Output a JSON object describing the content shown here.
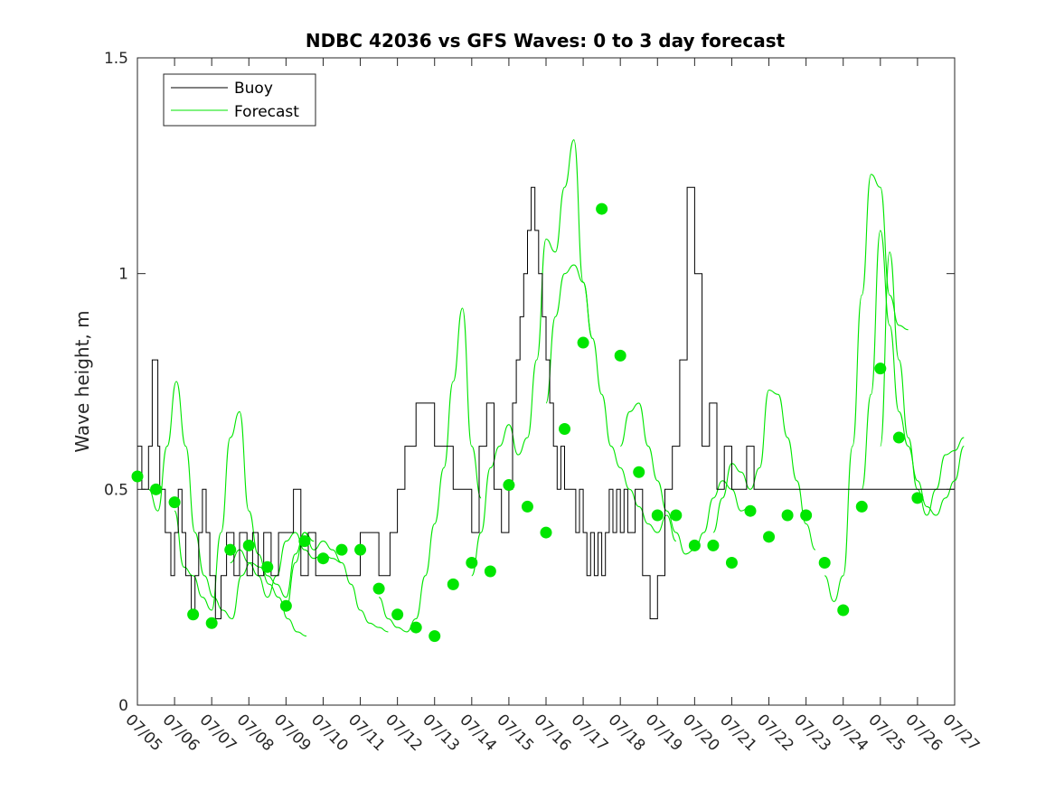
{
  "chart_data": {
    "type": "line",
    "title": "NDBC 42036 vs GFS Waves: 0 to 3 day forecast",
    "xlabel": "",
    "ylabel": "Wave height, m",
    "xlim": [
      "07/05",
      "07/27"
    ],
    "ylim": [
      0,
      1.5
    ],
    "x_tick_labels": [
      "07/05",
      "07/06",
      "07/07",
      "07/08",
      "07/09",
      "07/10",
      "07/11",
      "07/12",
      "07/13",
      "07/14",
      "07/15",
      "07/16",
      "07/17",
      "07/18",
      "07/19",
      "07/20",
      "07/21",
      "07/22",
      "07/23",
      "07/24",
      "07/25",
      "07/26",
      "07/27"
    ],
    "y_ticks": [
      0,
      0.5,
      1,
      1.5
    ],
    "y_tick_labels": [
      "0",
      "0.5",
      "1",
      "1.5"
    ],
    "grid": false,
    "legend": {
      "position": "top-left",
      "entries": [
        "Buoy",
        "Forecast"
      ]
    },
    "colors": {
      "buoy": "#000000",
      "forecast": "#00e600",
      "axes": "#262626"
    },
    "series": [
      {
        "name": "Buoy",
        "style": "step",
        "x": [
          0,
          0.12,
          0.3,
          0.4,
          0.55,
          0.6,
          0.75,
          0.9,
          1.0,
          1.1,
          1.2,
          1.3,
          1.45,
          1.55,
          1.65,
          1.75,
          1.85,
          1.95,
          2.1,
          2.25,
          2.4,
          2.5,
          2.6,
          2.75,
          2.95,
          3.1,
          3.25,
          3.4,
          3.6,
          3.8,
          4.0,
          4.2,
          4.4,
          4.6,
          4.8,
          5.2,
          5.6,
          5.8,
          5.85,
          5.9,
          6.0,
          6.5,
          6.8,
          7.0,
          7.2,
          7.5,
          8.0,
          8.5,
          9.0,
          9.2,
          9.4,
          9.6,
          9.8,
          10.0,
          10.1,
          10.2,
          10.3,
          10.4,
          10.5,
          10.6,
          10.7,
          10.8,
          10.9,
          11.0,
          11.1,
          11.2,
          11.3,
          11.4,
          11.5,
          11.6,
          11.7,
          11.8,
          11.9,
          12.0,
          12.1,
          12.2,
          12.3,
          12.4,
          12.5,
          12.6,
          12.7,
          12.8,
          12.9,
          13.0,
          13.1,
          13.2,
          13.4,
          13.6,
          13.8,
          14.0,
          14.2,
          14.4,
          14.6,
          14.8,
          15.0,
          15.2,
          15.4,
          15.6,
          15.8,
          16.0,
          16.2,
          16.4,
          16.6,
          16.8,
          17.0,
          17.2,
          17.4,
          17.6,
          17.8,
          18.0,
          18.2,
          18.4,
          18.6,
          18.8,
          19.0,
          19.2,
          19.4,
          19.6,
          19.8,
          20.0,
          20.2,
          20.4,
          20.6,
          20.8,
          21.0,
          21.2,
          21.4,
          21.6,
          21.8,
          22.0
        ],
        "values": [
          0.6,
          0.5,
          0.6,
          0.8,
          0.6,
          0.5,
          0.4,
          0.3,
          0.4,
          0.5,
          0.4,
          0.3,
          0.2,
          0.3,
          0.4,
          0.5,
          0.4,
          0.3,
          0.2,
          0.3,
          0.4,
          0.4,
          0.3,
          0.4,
          0.3,
          0.4,
          0.3,
          0.4,
          0.3,
          0.4,
          0.4,
          0.5,
          0.3,
          0.4,
          0.3,
          0.3,
          0.3,
          0.3,
          0.3,
          0.3,
          0.4,
          0.3,
          0.4,
          0.5,
          0.6,
          0.7,
          0.6,
          0.5,
          0.4,
          0.6,
          0.7,
          0.5,
          0.4,
          0.5,
          0.7,
          0.8,
          0.9,
          1.0,
          1.1,
          1.2,
          1.1,
          1.0,
          0.9,
          0.8,
          0.7,
          0.6,
          0.5,
          0.6,
          0.5,
          0.5,
          0.5,
          0.4,
          0.5,
          0.4,
          0.3,
          0.4,
          0.3,
          0.4,
          0.3,
          0.4,
          0.5,
          0.4,
          0.5,
          0.4,
          0.5,
          0.4,
          0.5,
          0.3,
          0.2,
          0.3,
          0.5,
          0.6,
          0.8,
          1.2,
          1.0,
          0.6,
          0.7,
          0.5,
          0.6,
          0.5,
          0.5,
          0.6,
          0.5,
          0.5,
          0.5,
          0.5,
          0.5,
          0.5,
          0.5,
          0.5,
          0.5,
          0.5,
          0.5,
          0.5,
          0.5,
          0.5,
          0.5,
          0.5,
          0.5,
          0.5,
          0.5,
          0.5,
          0.5,
          0.5,
          0.5,
          0.5,
          0.5,
          0.5,
          0.5,
          0.5
        ]
      },
      {
        "name": "Forecast",
        "style": "markers",
        "x": [
          0,
          0.5,
          1.0,
          1.5,
          2.0,
          2.5,
          3.0,
          3.5,
          4.0,
          4.5,
          5.0,
          5.5,
          6.0,
          6.5,
          7.0,
          7.5,
          8.0,
          8.5,
          9.0,
          9.5,
          10.0,
          10.5,
          11.0,
          11.5,
          12.0,
          12.5,
          13.0,
          13.5,
          14.0,
          14.5,
          15.0,
          15.5,
          16.0,
          16.5,
          17.0,
          17.5,
          18.0,
          18.5,
          19.0,
          19.5,
          20.0,
          20.5,
          21.0
        ],
        "values": [
          0.53,
          0.5,
          0.47,
          0.21,
          0.19,
          0.36,
          0.37,
          0.32,
          0.23,
          0.38,
          0.34,
          0.36,
          0.36,
          0.27,
          0.21,
          0.18,
          0.16,
          0.28,
          0.33,
          0.31,
          0.51,
          0.46,
          0.4,
          0.64,
          0.84,
          1.15,
          0.81,
          0.54,
          0.44,
          0.44,
          0.37,
          0.37,
          0.33,
          0.45,
          0.39,
          0.44,
          0.44,
          0.33,
          0.22,
          0.46,
          0.78,
          0.62,
          0.48
        ]
      }
    ],
    "forecast_runs": [
      {
        "x_start": 0.3,
        "values": [
          0.5,
          0.45,
          0.6,
          0.75,
          0.6,
          0.4,
          0.3,
          0.25,
          0.22,
          0.2,
          0.3,
          0.33,
          0.32,
          0.28,
          0.25,
          0.2,
          0.17,
          0.16
        ]
      },
      {
        "x_start": 1.0,
        "values": [
          0.45,
          0.32,
          0.3,
          0.25,
          0.22,
          0.4,
          0.62,
          0.68,
          0.45,
          0.35,
          0.3,
          0.28,
          0.25,
          0.35,
          0.4,
          0.38
        ]
      },
      {
        "x_start": 2.5,
        "values": [
          0.33,
          0.36,
          0.33,
          0.3,
          0.25,
          0.3,
          0.38,
          0.4,
          0.36,
          0.34,
          0.35,
          0.34,
          0.33
        ]
      },
      {
        "x_start": 4.0,
        "values": [
          0.22,
          0.33,
          0.4,
          0.36,
          0.38,
          0.36,
          0.33,
          0.28,
          0.22,
          0.19,
          0.18,
          0.17
        ]
      },
      {
        "x_start": 6.5,
        "values": [
          0.25,
          0.2,
          0.18,
          0.17,
          0.2,
          0.3,
          0.42,
          0.55,
          0.75,
          0.92,
          0.6,
          0.48
        ]
      },
      {
        "x_start": 9.0,
        "values": [
          0.3,
          0.4,
          0.55,
          0.6,
          0.65,
          0.58,
          0.62,
          0.8,
          1.08,
          1.05,
          1.2,
          1.31,
          0.98,
          0.85
        ]
      },
      {
        "x_start": 11.0,
        "values": [
          0.7,
          0.9,
          1.0,
          1.02,
          0.98,
          0.85,
          0.72,
          0.6,
          0.55,
          0.5,
          0.46,
          0.42,
          0.4,
          0.44,
          0.38
        ]
      },
      {
        "x_start": 13.0,
        "values": [
          0.6,
          0.68,
          0.7,
          0.6,
          0.52,
          0.45,
          0.4,
          0.35,
          0.36,
          0.4,
          0.48,
          0.52,
          0.5,
          0.45,
          0.46
        ]
      },
      {
        "x_start": 15.5,
        "values": [
          0.4,
          0.48,
          0.56,
          0.54,
          0.5,
          0.55,
          0.73,
          0.72,
          0.62,
          0.52,
          0.42,
          0.36
        ]
      },
      {
        "x_start": 18.5,
        "values": [
          0.3,
          0.24,
          0.3,
          0.6,
          0.95,
          1.23,
          1.2,
          0.95,
          0.88,
          0.87
        ]
      },
      {
        "x_start": 19.5,
        "values": [
          0.5,
          0.72,
          1.1,
          0.88,
          0.68,
          0.6,
          0.52,
          0.46,
          0.44,
          0.48,
          0.52,
          0.6
        ]
      },
      {
        "x_start": 20.0,
        "values": [
          0.6,
          1.05,
          0.8,
          0.62,
          0.5,
          0.44,
          0.5,
          0.58,
          0.59,
          0.62
        ]
      }
    ]
  }
}
